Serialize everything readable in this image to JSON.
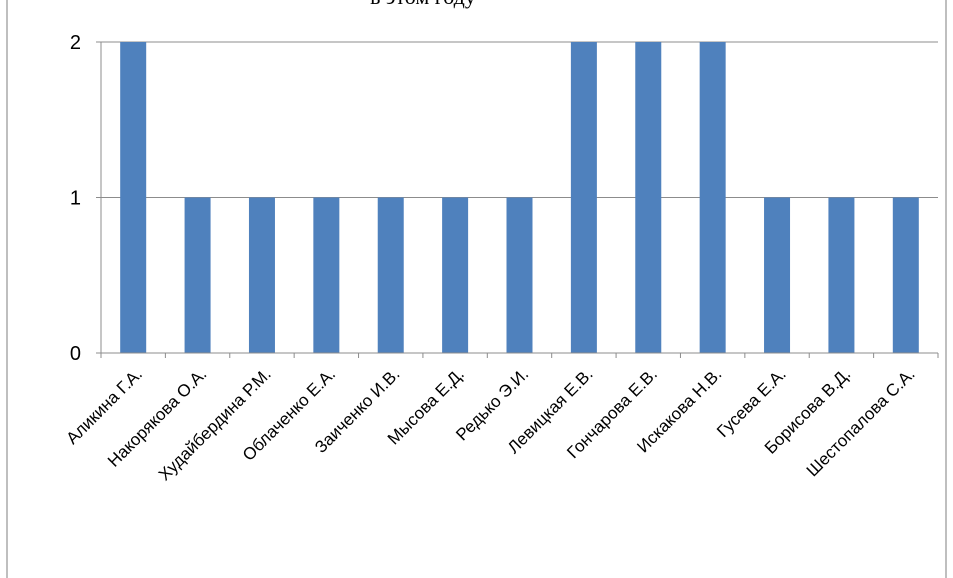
{
  "chart_data": {
    "type": "bar",
    "title": "в этом году",
    "categories": [
      "Аликина Г.А.",
      "Накорякова О.А.",
      "Худайбердина Р.М.",
      "Облаченко Е.А.",
      "Заиченко И.В.",
      "Мысова Е.Д.",
      "Редько Э.И.",
      "Левицкая Е.В.",
      "Гончарова Е.В.",
      "Искакова Н.В.",
      "Гусева Е.А.",
      "Борисова В.Д.",
      "Шестопалова С.А."
    ],
    "values": [
      2,
      1,
      1,
      1,
      1,
      1,
      1,
      2,
      2,
      2,
      1,
      1,
      1
    ],
    "ylim": [
      0,
      2
    ],
    "yticks": [
      "0",
      "1",
      "2"
    ],
    "xlabel": "",
    "ylabel": "",
    "grid": true,
    "bar_color": "#4f81bd"
  }
}
